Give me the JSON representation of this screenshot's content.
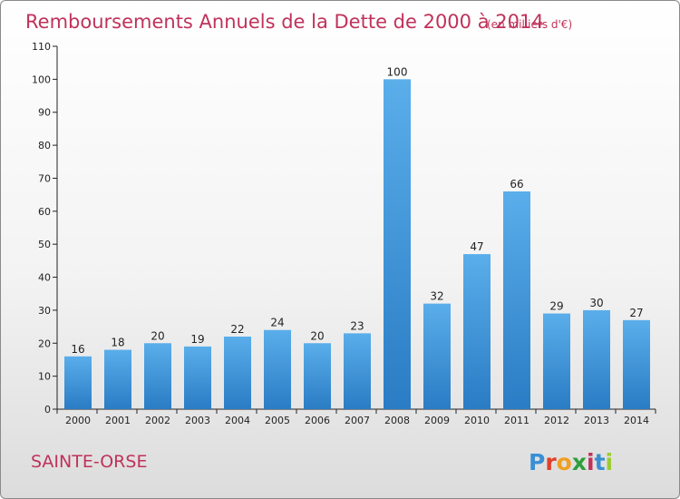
{
  "chart_data": {
    "type": "bar",
    "title": "Remboursements Annuels de la Dette de 2000 à 2014",
    "unit": "(en milliers d'€)",
    "categories": [
      "2000",
      "2001",
      "2002",
      "2003",
      "2004",
      "2005",
      "2006",
      "2007",
      "2008",
      "2009",
      "2010",
      "2011",
      "2012",
      "2013",
      "2014"
    ],
    "values": [
      16,
      18,
      20,
      19,
      22,
      24,
      20,
      23,
      100,
      32,
      47,
      66,
      29,
      30,
      27
    ],
    "ylim": [
      0,
      110
    ],
    "yticks": [
      0,
      10,
      20,
      30,
      40,
      50,
      60,
      70,
      80,
      90,
      100,
      110
    ],
    "grid": false,
    "bar_color": "#3a95d8"
  },
  "footer": {
    "commune": "SAINTE-ORSE",
    "brand": {
      "letters": [
        "P",
        "r",
        "o",
        "x",
        "i",
        "t",
        "i"
      ],
      "colors": [
        "#3a8fd4",
        "#e0402a",
        "#f0a020",
        "#2e9e3a",
        "#c0325a",
        "#3a8fd4",
        "#9acd32"
      ]
    }
  }
}
